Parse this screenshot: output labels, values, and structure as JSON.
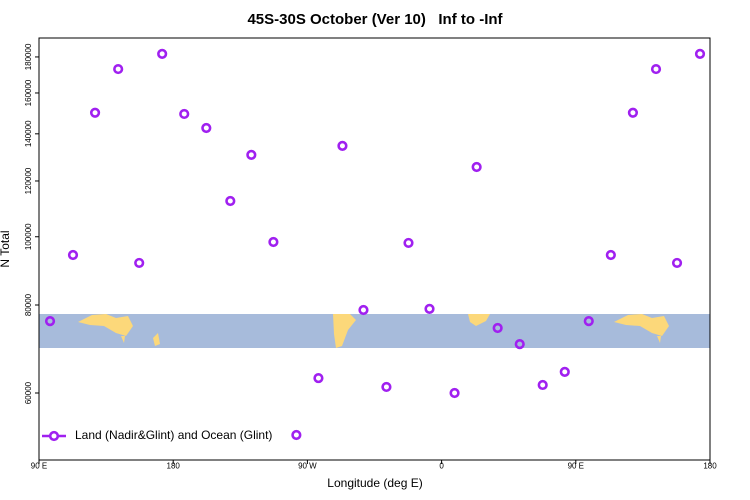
{
  "chart_data": {
    "type": "scatter",
    "title": "45S-30S October (Ver 10)   Inf to -Inf",
    "xlabel": "Longitude (deg E)",
    "ylabel": "N Total",
    "xlim": [
      90,
      540
    ],
    "xticks": [
      {
        "value": 90,
        "label": "90 E"
      },
      180,
      {
        "value": 270,
        "label": "90 W"
      },
      {
        "value": 360,
        "label": "0"
      },
      {
        "value": 450,
        "label": "90 E"
      },
      {
        "value": 540,
        "label": "180"
      }
    ],
    "ylim": [
      48200,
      191500
    ],
    "log_y": true,
    "yticks": [
      60000,
      80000,
      100000,
      120000,
      140000,
      160000,
      180000
    ],
    "legend": "bottom-left",
    "series": [
      {
        "name": "Land (Nadir&Glint) and Ocean (Glint)",
        "color": "#a020f0",
        "x": [
          97.4,
          112.8,
          127.6,
          143.1,
          157.2,
          172.6,
          187.4,
          202.2,
          218.3,
          232.4,
          247.2,
          262.6,
          277.4,
          293.5,
          307.6,
          323.0,
          337.8,
          351.9,
          368.7,
          383.5,
          397.6,
          412.4,
          427.8,
          442.6,
          458.7,
          473.5,
          488.3,
          503.8,
          517.9,
          533.3
        ],
        "values": [
          75900,
          94200,
          150000,
          173000,
          91800,
          181800,
          149400,
          142700,
          112400,
          130700,
          98300,
          52300,
          63000,
          134600,
          78700,
          61200,
          98000,
          79000,
          60000,
          125600,
          74200,
          70400,
          61600,
          64300,
          75900,
          94200,
          150000,
          173000,
          91800,
          181800
        ]
      }
    ]
  }
}
